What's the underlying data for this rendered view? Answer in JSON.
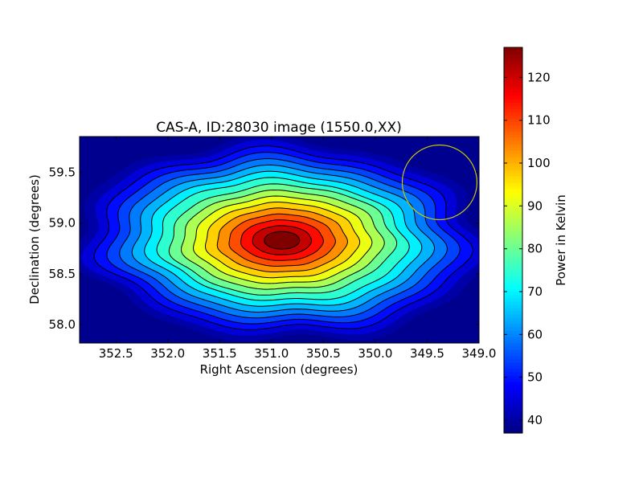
{
  "chart_data": {
    "type": "heatmap",
    "title": "CAS-A, ID:28030 image (1550.0,XX)",
    "xlabel": "Right Ascension (degrees)",
    "ylabel": "Declination (degrees)",
    "xlim": [
      352.85,
      349.0
    ],
    "ylim": [
      57.82,
      59.85
    ],
    "x_ticks": [
      "352.5",
      "352.0",
      "351.5",
      "351.0",
      "350.5",
      "350.0",
      "349.5",
      "349.0"
    ],
    "y_ticks": [
      "58.0",
      "58.5",
      "59.0",
      "59.5"
    ],
    "colormap": "jet",
    "colorbar": {
      "label": "Power in Kelvin",
      "range": [
        37,
        127
      ],
      "ticks": [
        "40",
        "50",
        "60",
        "70",
        "80",
        "90",
        "100",
        "110",
        "120"
      ]
    },
    "source_peak": {
      "ra": 350.9,
      "dec": 58.83,
      "value": 127
    },
    "background_value": 37,
    "contour_count": 15,
    "beam_circle": {
      "ra_center": 349.38,
      "dec_center": 59.4,
      "radius_deg": 0.36,
      "color": "#c8c800"
    }
  }
}
